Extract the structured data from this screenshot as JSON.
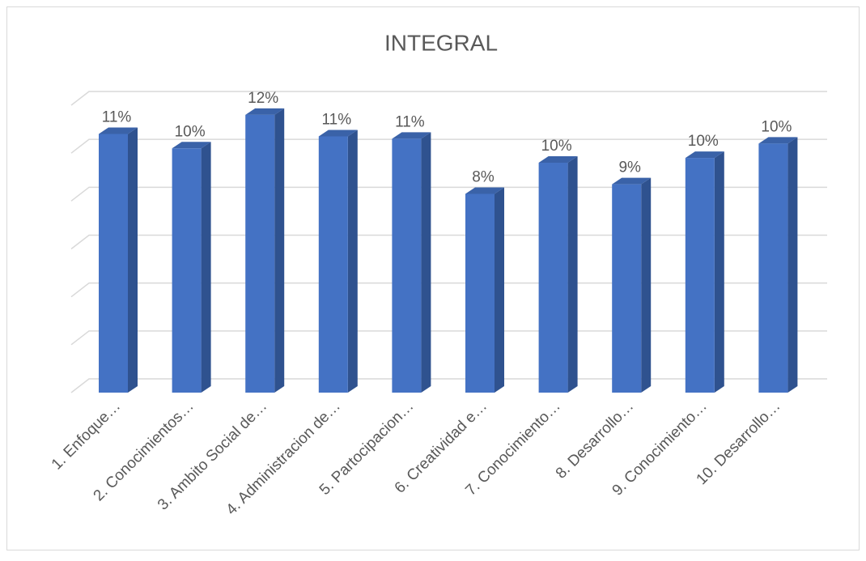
{
  "chart_data": {
    "type": "bar3d",
    "title": "INTEGRAL",
    "categories": [
      "1. Enfoque…",
      "2. Conocimientos…",
      "3. Ambito Social de…",
      "4. Administracion de…",
      "5. Partocipacion…",
      "6. Creatividad e…",
      "7. Conocimiento…",
      "8. Desarrollo…",
      "9. Conocimiento…",
      "10. Desarrollo…"
    ],
    "values": [
      10.8,
      10.2,
      11.6,
      10.7,
      10.6,
      8.3,
      9.6,
      8.7,
      9.8,
      10.4
    ],
    "value_labels": [
      "11%",
      "10%",
      "12%",
      "11%",
      "11%",
      "8%",
      "10%",
      "9%",
      "10%",
      "10%"
    ],
    "color": "#4472c4",
    "ylim": [
      0,
      12
    ],
    "yticks": [
      0,
      2,
      4,
      6,
      8,
      10,
      12
    ],
    "grid": true
  }
}
